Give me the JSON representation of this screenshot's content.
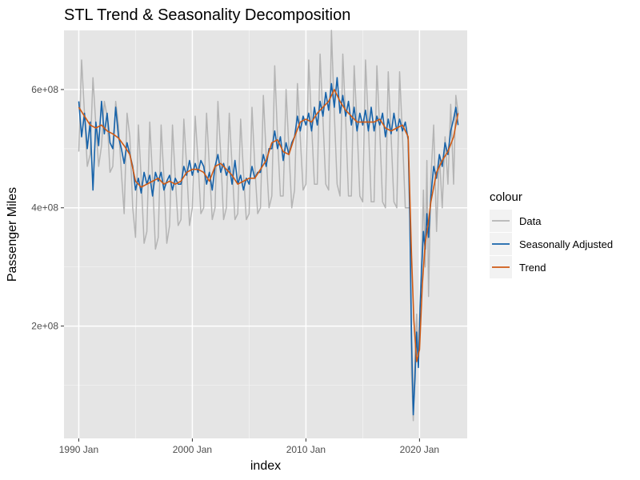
{
  "chart_data": {
    "type": "line",
    "title": "STL Trend & Seasonality Decomposition",
    "xlabel": "index",
    "ylabel": "Passenger Miles",
    "xlim": [
      1989.7,
      2025.2
    ],
    "ylim": [
      10000000,
      700000000
    ],
    "x_ticks": [
      {
        "value": 1991,
        "label": "1990 Jan"
      },
      {
        "value": 2001,
        "label": "2000 Jan"
      },
      {
        "value": 2011,
        "label": "2010 Jan"
      },
      {
        "value": 2021,
        "label": "2020 Jan"
      }
    ],
    "y_ticks": [
      {
        "value": 200000000,
        "label": "2e+08"
      },
      {
        "value": 400000000,
        "label": "4e+08"
      },
      {
        "value": 600000000,
        "label": "6e+08"
      }
    ],
    "grid": true,
    "background": "#e5e5e5",
    "legend": {
      "title": "colour",
      "placement": "right",
      "entries": [
        {
          "name": "Data",
          "color": "#b4b4b4"
        },
        {
          "name": "Seasonally Adjusted",
          "color": "#1763aa"
        },
        {
          "name": "Trend",
          "color": "#cf5a14"
        }
      ]
    },
    "series": [
      {
        "name": "Trend",
        "color": "#cf5a14",
        "x": [
          1991.0,
          1991.5,
          1992.0,
          1992.5,
          1993.0,
          1993.5,
          1994.0,
          1994.5,
          1995.0,
          1995.5,
          1996.0,
          1996.5,
          1997.0,
          1997.5,
          1998.0,
          1998.5,
          1999.0,
          1999.5,
          2000.0,
          2000.5,
          2001.0,
          2001.5,
          2002.0,
          2002.5,
          2003.0,
          2003.5,
          2004.0,
          2004.5,
          2005.0,
          2005.5,
          2006.0,
          2006.5,
          2007.0,
          2007.5,
          2008.0,
          2008.5,
          2009.0,
          2009.5,
          2010.0,
          2010.5,
          2011.0,
          2011.5,
          2012.0,
          2012.5,
          2013.0,
          2013.5,
          2014.0,
          2014.5,
          2015.0,
          2015.5,
          2016.0,
          2016.5,
          2017.0,
          2017.5,
          2018.0,
          2018.5,
          2019.0,
          2019.5,
          2020.0,
          2020.3,
          2020.5,
          2020.75,
          2021.0,
          2021.25,
          2021.5,
          2021.75,
          2022.0,
          2022.5,
          2023.0,
          2023.5,
          2024.0,
          2024.4
        ],
        "values": [
          570000000,
          555000000,
          540000000,
          535000000,
          540000000,
          530000000,
          525000000,
          518000000,
          505000000,
          490000000,
          445000000,
          435000000,
          440000000,
          445000000,
          450000000,
          440000000,
          445000000,
          440000000,
          445000000,
          460000000,
          465000000,
          465000000,
          460000000,
          445000000,
          470000000,
          475000000,
          465000000,
          455000000,
          440000000,
          445000000,
          450000000,
          450000000,
          465000000,
          480000000,
          510000000,
          515000000,
          495000000,
          490000000,
          520000000,
          545000000,
          550000000,
          545000000,
          560000000,
          570000000,
          580000000,
          600000000,
          580000000,
          565000000,
          555000000,
          545000000,
          545000000,
          545000000,
          545000000,
          550000000,
          535000000,
          530000000,
          535000000,
          540000000,
          520000000,
          320000000,
          210000000,
          140000000,
          160000000,
          270000000,
          340000000,
          370000000,
          410000000,
          460000000,
          480000000,
          495000000,
          520000000,
          560000000
        ]
      },
      {
        "name": "Seasonally Adjusted",
        "color": "#1763aa",
        "x": [
          1991.0,
          1991.25,
          1991.5,
          1991.75,
          1992.0,
          1992.25,
          1992.5,
          1992.75,
          1993.0,
          1993.25,
          1993.5,
          1993.75,
          1994.0,
          1994.25,
          1994.5,
          1994.75,
          1995.0,
          1995.25,
          1995.5,
          1995.75,
          1996.0,
          1996.25,
          1996.5,
          1996.75,
          1997.0,
          1997.25,
          1997.5,
          1997.75,
          1998.0,
          1998.25,
          1998.5,
          1998.75,
          1999.0,
          1999.25,
          1999.5,
          1999.75,
          2000.0,
          2000.25,
          2000.5,
          2000.75,
          2001.0,
          2001.25,
          2001.5,
          2001.75,
          2002.0,
          2002.25,
          2002.5,
          2002.75,
          2003.0,
          2003.25,
          2003.5,
          2003.75,
          2004.0,
          2004.25,
          2004.5,
          2004.75,
          2005.0,
          2005.25,
          2005.5,
          2005.75,
          2006.0,
          2006.25,
          2006.5,
          2006.75,
          2007.0,
          2007.25,
          2007.5,
          2007.75,
          2008.0,
          2008.25,
          2008.5,
          2008.75,
          2009.0,
          2009.25,
          2009.5,
          2009.75,
          2010.0,
          2010.25,
          2010.5,
          2010.75,
          2011.0,
          2011.25,
          2011.5,
          2011.75,
          2012.0,
          2012.25,
          2012.5,
          2012.75,
          2013.0,
          2013.25,
          2013.5,
          2013.75,
          2014.0,
          2014.25,
          2014.5,
          2014.75,
          2015.0,
          2015.25,
          2015.5,
          2015.75,
          2016.0,
          2016.25,
          2016.5,
          2016.75,
          2017.0,
          2017.25,
          2017.5,
          2017.75,
          2018.0,
          2018.25,
          2018.5,
          2018.75,
          2019.0,
          2019.25,
          2019.5,
          2019.75,
          2020.0,
          2020.15,
          2020.3,
          2020.45,
          2020.6,
          2020.75,
          2020.9,
          2021.05,
          2021.2,
          2021.35,
          2021.5,
          2021.65,
          2021.8,
          2022.0,
          2022.25,
          2022.5,
          2022.75,
          2023.0,
          2023.25,
          2023.5,
          2023.75,
          2024.0,
          2024.2,
          2024.4
        ],
        "values": [
          580000000,
          520000000,
          560000000,
          500000000,
          545000000,
          430000000,
          545000000,
          505000000,
          580000000,
          525000000,
          560000000,
          510000000,
          500000000,
          570000000,
          520000000,
          500000000,
          475000000,
          510000000,
          490000000,
          470000000,
          430000000,
          450000000,
          425000000,
          460000000,
          440000000,
          455000000,
          420000000,
          460000000,
          445000000,
          460000000,
          430000000,
          445000000,
          455000000,
          430000000,
          450000000,
          440000000,
          440000000,
          470000000,
          455000000,
          480000000,
          455000000,
          475000000,
          460000000,
          480000000,
          470000000,
          440000000,
          460000000,
          430000000,
          470000000,
          490000000,
          460000000,
          475000000,
          455000000,
          470000000,
          440000000,
          480000000,
          440000000,
          455000000,
          430000000,
          450000000,
          440000000,
          470000000,
          450000000,
          460000000,
          460000000,
          490000000,
          470000000,
          500000000,
          500000000,
          530000000,
          500000000,
          520000000,
          480000000,
          510000000,
          490000000,
          510000000,
          520000000,
          555000000,
          530000000,
          555000000,
          540000000,
          560000000,
          530000000,
          570000000,
          540000000,
          580000000,
          555000000,
          595000000,
          565000000,
          610000000,
          570000000,
          620000000,
          560000000,
          590000000,
          555000000,
          580000000,
          540000000,
          570000000,
          530000000,
          560000000,
          540000000,
          565000000,
          530000000,
          570000000,
          530000000,
          555000000,
          540000000,
          560000000,
          520000000,
          550000000,
          525000000,
          560000000,
          530000000,
          550000000,
          530000000,
          545000000,
          515000000,
          380000000,
          180000000,
          50000000,
          110000000,
          190000000,
          130000000,
          230000000,
          300000000,
          360000000,
          330000000,
          390000000,
          350000000,
          420000000,
          470000000,
          450000000,
          490000000,
          470000000,
          510000000,
          490000000,
          530000000,
          550000000,
          570000000,
          540000000
        ]
      },
      {
        "name": "Data",
        "color": "#b4b4b4",
        "x": [
          1991.0,
          1991.25,
          1991.5,
          1991.75,
          1992.0,
          1992.25,
          1992.5,
          1992.75,
          1993.0,
          1993.25,
          1993.5,
          1993.75,
          1994.0,
          1994.25,
          1994.5,
          1994.75,
          1995.0,
          1995.25,
          1995.5,
          1995.75,
          1996.0,
          1996.25,
          1996.5,
          1996.75,
          1997.0,
          1997.25,
          1997.5,
          1997.75,
          1998.0,
          1998.25,
          1998.5,
          1998.75,
          1999.0,
          1999.25,
          1999.5,
          1999.75,
          2000.0,
          2000.25,
          2000.5,
          2000.75,
          2001.0,
          2001.25,
          2001.5,
          2001.75,
          2002.0,
          2002.25,
          2002.5,
          2002.75,
          2003.0,
          2003.25,
          2003.5,
          2003.75,
          2004.0,
          2004.25,
          2004.5,
          2004.75,
          2005.0,
          2005.25,
          2005.5,
          2005.75,
          2006.0,
          2006.25,
          2006.5,
          2006.75,
          2007.0,
          2007.25,
          2007.5,
          2007.75,
          2008.0,
          2008.25,
          2008.5,
          2008.75,
          2009.0,
          2009.25,
          2009.5,
          2009.75,
          2010.0,
          2010.25,
          2010.5,
          2010.75,
          2011.0,
          2011.25,
          2011.5,
          2011.75,
          2012.0,
          2012.25,
          2012.5,
          2012.75,
          2013.0,
          2013.25,
          2013.5,
          2013.75,
          2014.0,
          2014.25,
          2014.5,
          2014.75,
          2015.0,
          2015.25,
          2015.5,
          2015.75,
          2016.0,
          2016.25,
          2016.5,
          2016.75,
          2017.0,
          2017.25,
          2017.5,
          2017.75,
          2018.0,
          2018.25,
          2018.5,
          2018.75,
          2019.0,
          2019.25,
          2019.5,
          2019.75,
          2020.0,
          2020.15,
          2020.3,
          2020.45,
          2020.6,
          2020.75,
          2020.9,
          2021.05,
          2021.2,
          2021.35,
          2021.5,
          2021.65,
          2021.8,
          2022.0,
          2022.25,
          2022.5,
          2022.75,
          2023.0,
          2023.25,
          2023.5,
          2023.75,
          2024.0,
          2024.2,
          2024.4
        ],
        "values": [
          495000000,
          650000000,
          560000000,
          470000000,
          490000000,
          620000000,
          540000000,
          470000000,
          505000000,
          580000000,
          555000000,
          460000000,
          470000000,
          580000000,
          540000000,
          460000000,
          390000000,
          560000000,
          520000000,
          400000000,
          350000000,
          540000000,
          450000000,
          340000000,
          360000000,
          545000000,
          450000000,
          330000000,
          350000000,
          540000000,
          450000000,
          340000000,
          370000000,
          540000000,
          450000000,
          370000000,
          380000000,
          550000000,
          470000000,
          370000000,
          400000000,
          555000000,
          480000000,
          390000000,
          400000000,
          560000000,
          470000000,
          380000000,
          400000000,
          580000000,
          490000000,
          380000000,
          400000000,
          560000000,
          470000000,
          380000000,
          390000000,
          550000000,
          460000000,
          380000000,
          390000000,
          570000000,
          470000000,
          390000000,
          400000000,
          590000000,
          490000000,
          400000000,
          420000000,
          640000000,
          520000000,
          420000000,
          420000000,
          600000000,
          500000000,
          400000000,
          430000000,
          610000000,
          520000000,
          430000000,
          440000000,
          650000000,
          540000000,
          440000000,
          440000000,
          660000000,
          550000000,
          440000000,
          430000000,
          700000000,
          560000000,
          440000000,
          420000000,
          660000000,
          550000000,
          420000000,
          420000000,
          640000000,
          540000000,
          420000000,
          410000000,
          650000000,
          540000000,
          410000000,
          410000000,
          640000000,
          530000000,
          410000000,
          400000000,
          630000000,
          520000000,
          410000000,
          400000000,
          630000000,
          520000000,
          400000000,
          400000000,
          400000000,
          120000000,
          40000000,
          150000000,
          220000000,
          140000000,
          240000000,
          320000000,
          430000000,
          300000000,
          480000000,
          250000000,
          450000000,
          540000000,
          360000000,
          490000000,
          400000000,
          520000000,
          440000000,
          575000000,
          440000000,
          590000000,
          560000000
        ]
      }
    ]
  }
}
